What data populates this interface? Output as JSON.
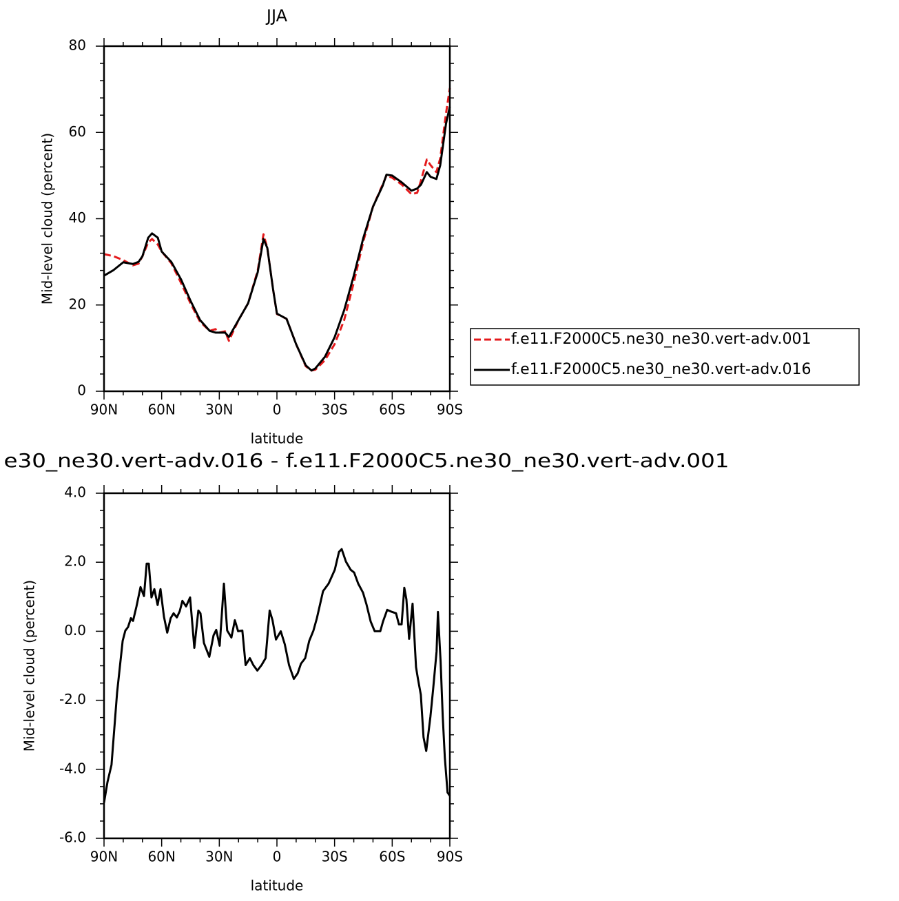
{
  "chart_data": [
    {
      "type": "line",
      "title": "JJA",
      "xlabel": "latitude",
      "ylabel": "Mid-level cloud (percent)",
      "x": [
        90,
        85,
        80,
        75,
        72,
        70,
        67,
        65,
        62,
        60,
        55,
        50,
        45,
        40,
        35,
        32,
        30,
        27,
        25,
        20,
        15,
        10,
        7,
        5,
        2,
        0,
        -5,
        -10,
        -15,
        -18,
        -20,
        -25,
        -30,
        -35,
        -40,
        -45,
        -50,
        -55,
        -57,
        -60,
        -65,
        -70,
        -73,
        -75,
        -78,
        -80,
        -83,
        -85,
        -88,
        -90
      ],
      "series": [
        {
          "name": "f.e11.F2000C5.ne30_ne30.vert-adv.001",
          "color": "#e41a1c",
          "style": "dashed",
          "values": [
            31.8,
            31.3,
            30.4,
            29.2,
            29.6,
            31.3,
            34.5,
            35.3,
            34,
            32.4,
            29.7,
            25.2,
            20.4,
            16.1,
            14,
            14.4,
            13.6,
            13.9,
            11.7,
            16.5,
            20.4,
            28,
            36.4,
            33.2,
            23.6,
            17.9,
            16.8,
            10.9,
            5.8,
            4.8,
            5,
            7.2,
            10.9,
            16.5,
            25.2,
            34.8,
            42.8,
            47.9,
            50,
            49.5,
            47.9,
            45.7,
            46,
            48.9,
            53.7,
            52.4,
            50.8,
            54,
            64.4,
            70.3
          ]
        },
        {
          "name": "f.e11.F2000C5.ne30_ne30.vert-adv.016",
          "color": "#000000",
          "style": "solid",
          "values": [
            26.8,
            28.1,
            29.9,
            29.5,
            30,
            31.3,
            35.6,
            36.6,
            35.6,
            32.4,
            30,
            26,
            21,
            16.5,
            14,
            13.6,
            13.6,
            13.6,
            12.6,
            16.5,
            20.4,
            27.6,
            35.3,
            33.2,
            23.6,
            18,
            16.8,
            10.9,
            6,
            4.8,
            5.3,
            8,
            12.5,
            18.8,
            26.8,
            35.6,
            42.8,
            47.6,
            50.2,
            50,
            48.4,
            46.5,
            47,
            47.9,
            50.8,
            49.7,
            49.2,
            52.4,
            62,
            66
          ]
        }
      ],
      "xlim": [
        90,
        -90
      ],
      "xticks": [
        {
          "value": 90,
          "label": "90N"
        },
        {
          "value": 60,
          "label": "60N"
        },
        {
          "value": 30,
          "label": "30N"
        },
        0,
        {
          "value": -30,
          "label": "30S"
        },
        {
          "value": -60,
          "label": "60S"
        },
        {
          "value": -90,
          "label": "90S"
        }
      ],
      "xminorticks": [
        80,
        70,
        50,
        40,
        20,
        10,
        -10,
        -20,
        -40,
        -50,
        -70,
        -80
      ],
      "ylim": [
        0,
        80
      ],
      "yticks": [
        0,
        20,
        40,
        60,
        80
      ],
      "yminorticks": [
        4,
        8,
        12,
        16,
        24,
        28,
        32,
        36,
        44,
        48,
        52,
        56,
        64,
        68,
        72,
        76
      ],
      "legend": "right"
    },
    {
      "type": "line",
      "title": "e30_ne30.vert-adv.016 - f.e11.F2000C5.ne30_ne30.vert-adv.001",
      "xlabel": "latitude",
      "ylabel": "Mid-level cloud (percent)",
      "x": [
        90,
        88.2,
        86.1,
        83.2,
        80.3,
        78.9,
        77.5,
        76.0,
        74.9,
        73.1,
        71.0,
        69.2,
        67.8,
        66.7,
        65.3,
        63.8,
        62.1,
        60.6,
        58.8,
        57.1,
        55.3,
        53.8,
        52.1,
        50.6,
        49.2,
        47.3,
        45.2,
        43.0,
        40.9,
        39.8,
        38.0,
        35.2,
        33.0,
        31.6,
        29.8,
        27.6,
        25.9,
        23.7,
        21.9,
        20.2,
        18.0,
        16.3,
        14.1,
        12.3,
        10.2,
        8.0,
        5.9,
        3.8,
        2.3,
        0.5,
        -2.0,
        -4.1,
        -6.3,
        -8.8,
        -10.8,
        -12.5,
        -14.7,
        -16.8,
        -19.0,
        -20.8,
        -24.0,
        -26.9,
        -30.1,
        -32.3,
        -33.7,
        -35.9,
        -38.4,
        -40.2,
        -42.3,
        -44.8,
        -46.6,
        -48.8,
        -50.9,
        -53.8,
        -55.2,
        -57.4,
        -59.9,
        -62.0,
        -63.5,
        -64.9,
        -66.3,
        -67.4,
        -68.8,
        -70.6,
        -72.4,
        -73.4,
        -74.9,
        -76.3,
        -77.7,
        -79.9,
        -81.3,
        -83.1,
        -83.8,
        -85.2,
        -86.3,
        -87.4,
        -88.8,
        -90
      ],
      "series": [
        {
          "color": "#000000",
          "style": "solid",
          "values": [
            -4.97,
            -4.37,
            -3.87,
            -1.78,
            -0.28,
            0.02,
            0.12,
            0.38,
            0.3,
            0.72,
            1.28,
            1.02,
            1.96,
            1.96,
            0.98,
            1.22,
            0.76,
            1.22,
            0.42,
            -0.04,
            0.38,
            0.52,
            0.4,
            0.58,
            0.88,
            0.72,
            0.98,
            -0.48,
            0.6,
            0.52,
            -0.34,
            -0.74,
            -0.12,
            0.04,
            -0.42,
            1.38,
            0.02,
            -0.18,
            0.32,
            0.0,
            0.02,
            -0.98,
            -0.78,
            -0.98,
            -1.14,
            -0.98,
            -0.78,
            0.6,
            0.32,
            -0.24,
            0.0,
            -0.38,
            -0.98,
            -1.38,
            -1.22,
            -0.94,
            -0.78,
            -0.28,
            0.02,
            0.38,
            1.16,
            1.38,
            1.78,
            2.3,
            2.38,
            2.02,
            1.78,
            1.7,
            1.38,
            1.12,
            0.78,
            0.28,
            0.0,
            0.0,
            0.28,
            0.62,
            0.56,
            0.52,
            0.2,
            0.2,
            1.26,
            0.92,
            -0.22,
            0.8,
            -1.04,
            -1.38,
            -1.84,
            -3.07,
            -3.47,
            -2.47,
            -1.68,
            -0.58,
            0.56,
            -0.88,
            -2.47,
            -3.67,
            -4.67,
            -4.77
          ]
        }
      ],
      "xlim": [
        90,
        -90
      ],
      "xticks": [
        {
          "value": 90,
          "label": "90N"
        },
        {
          "value": 60,
          "label": "60N"
        },
        {
          "value": 30,
          "label": "30N"
        },
        0,
        {
          "value": -30,
          "label": "30S"
        },
        {
          "value": -60,
          "label": "60S"
        },
        {
          "value": -90,
          "label": "90S"
        }
      ],
      "xminorticks": [
        80,
        70,
        50,
        40,
        20,
        10,
        -10,
        -20,
        -40,
        -50,
        -70,
        -80
      ],
      "ylim": [
        -6,
        4
      ],
      "yticks": [
        {
          "value": -6,
          "label": "-6.0"
        },
        {
          "value": -4,
          "label": "-4.0"
        },
        {
          "value": -2,
          "label": "-2.0"
        },
        {
          "value": 0,
          "label": "0.0"
        },
        {
          "value": 2,
          "label": "2.0"
        },
        {
          "value": 4,
          "label": "4.0"
        }
      ],
      "yminorticks": [
        -5.5,
        -5,
        -4.5,
        -3.5,
        -3,
        -2.5,
        -1.5,
        -1,
        -0.5,
        0.5,
        1,
        1.5,
        2.5,
        3,
        3.5
      ]
    }
  ]
}
